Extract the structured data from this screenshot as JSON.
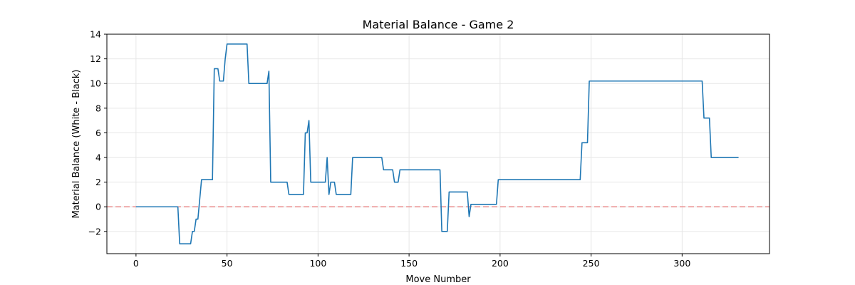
{
  "chart_data": {
    "type": "line",
    "title": "Material Balance - Game 2",
    "xlabel": "Move Number",
    "ylabel": "Material Balance (White - Black)",
    "xlim": [
      -16,
      348
    ],
    "ylim": [
      -3.8,
      14
    ],
    "xticks": [
      0,
      50,
      100,
      150,
      200,
      250,
      300
    ],
    "yticks": [
      -2,
      0,
      2,
      4,
      6,
      8,
      10,
      12,
      14
    ],
    "grid": true,
    "reference_line": {
      "y": 0,
      "style": "dashed",
      "color": "#e88a8a"
    },
    "series": [
      {
        "color": "#1f77b4",
        "x": [
          0,
          23,
          24,
          30,
          31,
          32,
          33,
          34,
          36,
          37,
          42,
          43,
          45,
          46,
          48,
          49,
          50,
          61,
          62,
          72,
          73,
          74,
          83,
          84,
          92,
          93,
          94,
          95,
          96,
          104,
          105,
          106,
          107,
          109,
          110,
          118,
          119,
          135,
          136,
          141,
          142,
          144,
          145,
          167,
          168,
          171,
          172,
          182,
          183,
          184,
          198,
          199,
          244,
          245,
          248,
          249,
          311,
          312,
          315,
          316,
          331
        ],
        "y": [
          0,
          0,
          -3,
          -3,
          -2,
          -2,
          -1,
          -1,
          2.2,
          2.2,
          2.2,
          11.2,
          11.2,
          10.2,
          10.2,
          12,
          13.2,
          13.2,
          10,
          10,
          11,
          2,
          2,
          1,
          1,
          6,
          6,
          7,
          2,
          2,
          4,
          1,
          2,
          2,
          1,
          1,
          4,
          4,
          3,
          3,
          2,
          2,
          3,
          3,
          -2,
          -2,
          1.2,
          1.2,
          -0.8,
          0.2,
          0.2,
          2.2,
          2.2,
          5.2,
          5.2,
          10.2,
          10.2,
          7.2,
          7.2,
          4,
          4
        ]
      }
    ]
  }
}
